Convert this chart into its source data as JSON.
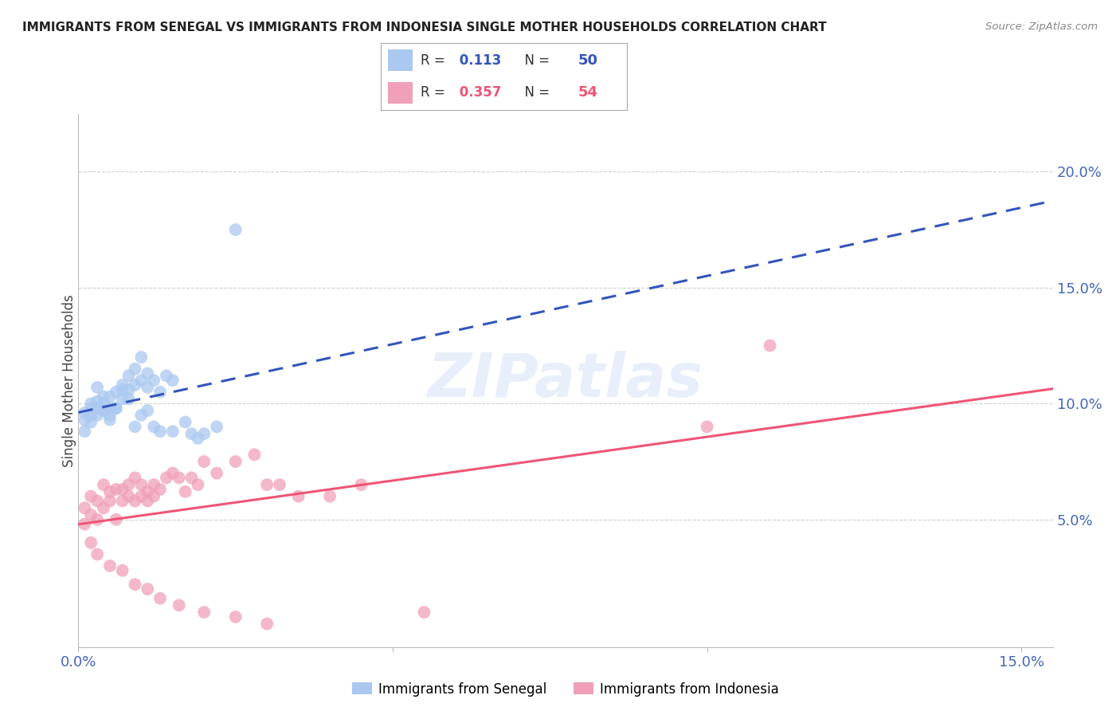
{
  "title": "IMMIGRANTS FROM SENEGAL VS IMMIGRANTS FROM INDONESIA SINGLE MOTHER HOUSEHOLDS CORRELATION CHART",
  "source": "Source: ZipAtlas.com",
  "ylabel": "Single Mother Households",
  "xlim": [
    0.0,
    0.155
  ],
  "ylim": [
    -0.005,
    0.225
  ],
  "xticks": [
    0.0,
    0.05,
    0.1,
    0.15
  ],
  "xticklabels": [
    "0.0%",
    "",
    "",
    "15.0%"
  ],
  "yticks_right": [
    0.05,
    0.1,
    0.15,
    0.2
  ],
  "yticklabels_right": [
    "5.0%",
    "10.0%",
    "15.0%",
    "20.0%"
  ],
  "grid_color": "#d0d0d0",
  "background_color": "#ffffff",
  "watermark": "ZIPatlas",
  "senegal_color": "#aac8f0",
  "indonesia_color": "#f0a0b8",
  "senegal_R": 0.113,
  "senegal_N": 50,
  "indonesia_R": 0.357,
  "indonesia_N": 54,
  "senegal_line_color": "#3355bb",
  "indonesia_line_color": "#ee5577",
  "senegal_line_style": "--",
  "indonesia_line_style": "-",
  "legend_label_senegal": "Immigrants from Senegal",
  "legend_label_indonesia": "Immigrants from Indonesia",
  "senegal_x": [
    0.001,
    0.001,
    0.002,
    0.002,
    0.002,
    0.003,
    0.003,
    0.003,
    0.004,
    0.004,
    0.004,
    0.005,
    0.005,
    0.005,
    0.006,
    0.006,
    0.007,
    0.007,
    0.008,
    0.008,
    0.009,
    0.009,
    0.01,
    0.01,
    0.011,
    0.011,
    0.012,
    0.013,
    0.014,
    0.015,
    0.001,
    0.002,
    0.003,
    0.004,
    0.005,
    0.006,
    0.007,
    0.008,
    0.009,
    0.01,
    0.011,
    0.012,
    0.013,
    0.015,
    0.017,
    0.018,
    0.019,
    0.02,
    0.022,
    0.025
  ],
  "senegal_y": [
    0.093,
    0.088,
    0.098,
    0.092,
    0.095,
    0.101,
    0.107,
    0.098,
    0.1,
    0.103,
    0.097,
    0.095,
    0.103,
    0.098,
    0.098,
    0.105,
    0.108,
    0.102,
    0.106,
    0.112,
    0.108,
    0.115,
    0.11,
    0.12,
    0.113,
    0.107,
    0.11,
    0.105,
    0.112,
    0.11,
    0.096,
    0.1,
    0.095,
    0.097,
    0.093,
    0.098,
    0.106,
    0.102,
    0.09,
    0.095,
    0.097,
    0.09,
    0.088,
    0.088,
    0.092,
    0.087,
    0.085,
    0.087,
    0.09,
    0.175
  ],
  "indonesia_x": [
    0.001,
    0.001,
    0.002,
    0.002,
    0.003,
    0.003,
    0.004,
    0.004,
    0.005,
    0.005,
    0.006,
    0.006,
    0.007,
    0.007,
    0.008,
    0.008,
    0.009,
    0.009,
    0.01,
    0.01,
    0.011,
    0.011,
    0.012,
    0.012,
    0.013,
    0.014,
    0.015,
    0.016,
    0.017,
    0.018,
    0.019,
    0.02,
    0.022,
    0.025,
    0.028,
    0.03,
    0.032,
    0.035,
    0.04,
    0.045,
    0.002,
    0.003,
    0.005,
    0.007,
    0.009,
    0.011,
    0.013,
    0.016,
    0.02,
    0.025,
    0.03,
    0.055,
    0.1,
    0.11
  ],
  "indonesia_y": [
    0.055,
    0.048,
    0.06,
    0.052,
    0.058,
    0.05,
    0.065,
    0.055,
    0.058,
    0.062,
    0.063,
    0.05,
    0.058,
    0.063,
    0.065,
    0.06,
    0.068,
    0.058,
    0.06,
    0.065,
    0.062,
    0.058,
    0.065,
    0.06,
    0.063,
    0.068,
    0.07,
    0.068,
    0.062,
    0.068,
    0.065,
    0.075,
    0.07,
    0.075,
    0.078,
    0.065,
    0.065,
    0.06,
    0.06,
    0.065,
    0.04,
    0.035,
    0.03,
    0.028,
    0.022,
    0.02,
    0.016,
    0.013,
    0.01,
    0.008,
    0.005,
    0.01,
    0.09,
    0.125
  ]
}
